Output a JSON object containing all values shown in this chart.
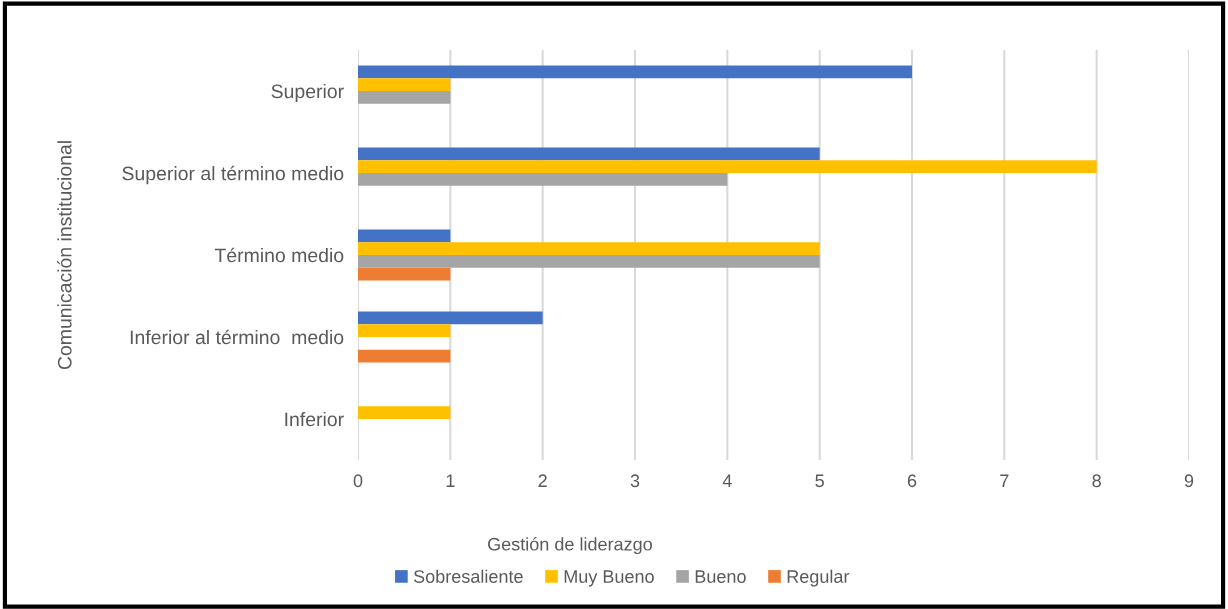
{
  "chart_data": {
    "type": "bar",
    "orientation": "horizontal",
    "xlabel": "Gestión de liderazgo",
    "ylabel": "Comunicación institucional",
    "categories": [
      "Superior",
      "Superior al término medio",
      "Término medio",
      "Inferior al término  medio",
      "Inferior"
    ],
    "series": [
      {
        "name": "Sobresaliente",
        "color": "#4472c4",
        "values": [
          6,
          5,
          1,
          2,
          null
        ]
      },
      {
        "name": "Muy Bueno",
        "color": "#ffc000",
        "values": [
          1,
          8,
          5,
          1,
          1
        ]
      },
      {
        "name": "Bueno",
        "color": "#a5a5a5",
        "values": [
          1,
          4,
          5,
          null,
          null
        ]
      },
      {
        "name": "Regular",
        "color": "#ed7d31",
        "values": [
          null,
          null,
          1,
          1,
          null
        ]
      }
    ],
    "xlim": [
      0,
      9
    ],
    "xticks": [
      0,
      1,
      2,
      3,
      4,
      5,
      6,
      7,
      8,
      9
    ],
    "grid": "x",
    "legend": "bottom"
  }
}
